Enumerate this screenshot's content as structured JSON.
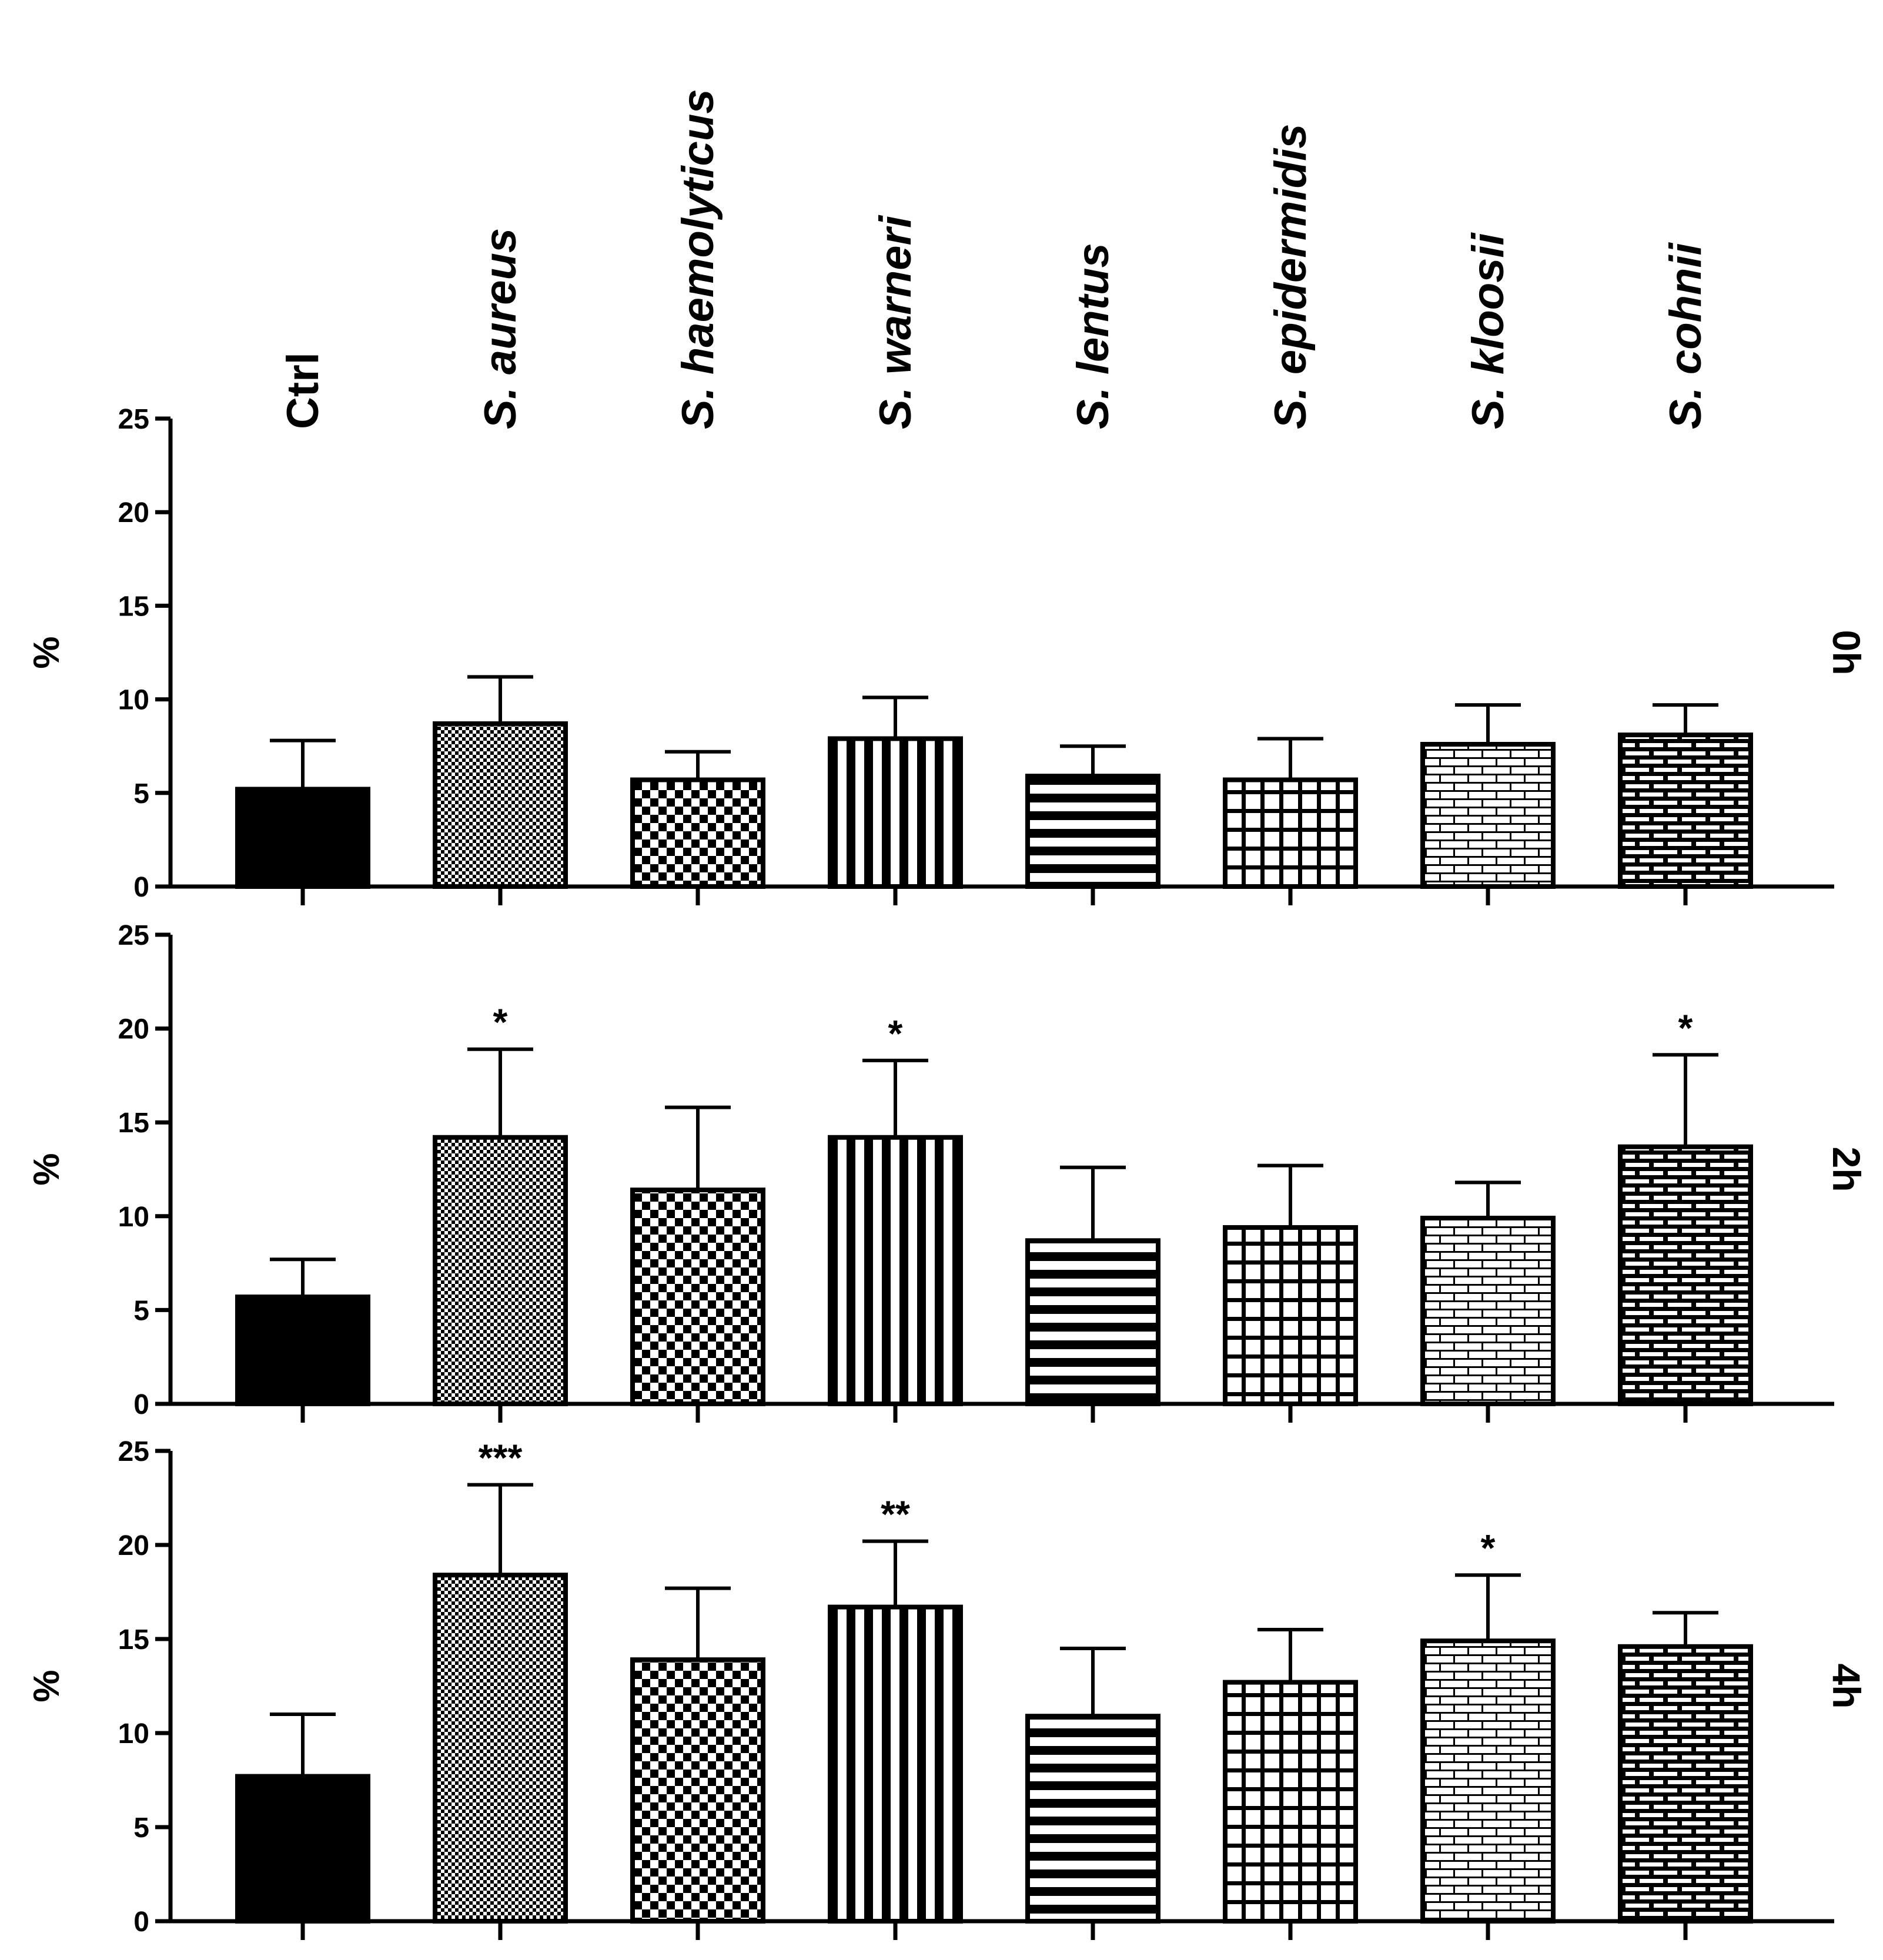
{
  "chart_data": {
    "type": "bar",
    "categories": [
      "Ctrl",
      "S. aureus",
      "S. haemolyticus",
      "S. warneri",
      "S. lentus",
      "S. epidermidis",
      "S. kloosii",
      "S. cohnii"
    ],
    "ylabel": "%",
    "ylim": [
      0,
      25
    ],
    "yticks": [
      0,
      5,
      10,
      15,
      20,
      25
    ],
    "panels": [
      {
        "label": "0h",
        "values": [
          5.2,
          8.7,
          5.7,
          7.9,
          5.9,
          5.7,
          7.6,
          8.1
        ],
        "errors": [
          2.6,
          2.5,
          1.5,
          2.2,
          1.6,
          2.2,
          2.1,
          1.6
        ],
        "significance": [
          "",
          "",
          "",
          "",
          "",
          "",
          "",
          ""
        ]
      },
      {
        "label": "2h",
        "values": [
          5.7,
          14.2,
          11.4,
          14.2,
          8.7,
          9.4,
          9.9,
          13.7
        ],
        "errors": [
          2.0,
          4.7,
          4.4,
          4.1,
          3.9,
          3.3,
          1.9,
          4.9
        ],
        "significance": [
          "",
          "*",
          "",
          "*",
          "",
          "",
          "",
          "*"
        ]
      },
      {
        "label": "4h",
        "values": [
          7.7,
          18.4,
          13.9,
          16.7,
          10.9,
          12.7,
          14.9,
          14.6
        ],
        "errors": [
          3.3,
          4.8,
          3.8,
          3.5,
          3.6,
          2.8,
          3.5,
          1.8
        ],
        "significance": [
          "",
          "***",
          "",
          "**",
          "",
          "",
          "*",
          ""
        ]
      }
    ]
  },
  "colors": {
    "ink": "#000000",
    "background": "#ffffff"
  }
}
